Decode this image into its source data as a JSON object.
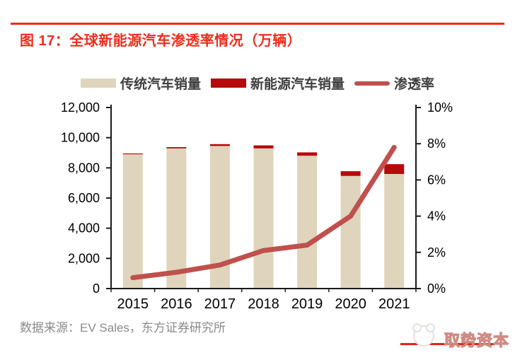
{
  "header": {
    "title": "图 17：全球新能源汽车渗透率情况（万辆）",
    "rule_color": "#ee2d1c",
    "title_color": "#ee2d1c"
  },
  "footer": {
    "source": "数据来源：EV Sales，东方证券研究所",
    "logo_text": "取势资本"
  },
  "colors": {
    "bar_traditional": "#ded5bc",
    "bar_nev": "#b60a0c",
    "line_penetration": "#c0504d",
    "axis": "#1a1a1a",
    "tick_text": "#000000"
  },
  "chart_data": {
    "type": "bar",
    "subtype": "stacked-bars-with-line-overlay",
    "title": "全球新能源汽车渗透率情况（万辆）",
    "categories": [
      "2015",
      "2016",
      "2017",
      "2018",
      "2019",
      "2020",
      "2021"
    ],
    "series": [
      {
        "name": "传统汽车销量",
        "type": "bar",
        "axis": "left",
        "color": "#ded5bc",
        "values": [
          8900,
          9290,
          9450,
          9290,
          8805,
          7465,
          7595
        ]
      },
      {
        "name": "新能源汽车销量",
        "type": "bar",
        "axis": "left",
        "color": "#b60a0c",
        "values": [
          55,
          84,
          122,
          200,
          221,
          312,
          650
        ]
      },
      {
        "name": "渗透率",
        "type": "line",
        "axis": "right",
        "color": "#c0504d",
        "values": [
          0.6,
          0.9,
          1.3,
          2.1,
          2.4,
          4.0,
          7.8
        ]
      }
    ],
    "left_axis": {
      "min": 0,
      "max": 12000,
      "tick_step": 2000,
      "tick_labels": [
        "0",
        "2,000",
        "4,000",
        "6,000",
        "8,000",
        "10,000",
        "12,000"
      ]
    },
    "right_axis": {
      "min": 0,
      "max": 10,
      "tick_step": 2,
      "tick_labels": [
        "0%",
        "2%",
        "4%",
        "6%",
        "8%",
        "10%"
      ]
    },
    "grid": false,
    "legend_position": "top",
    "stacked": true
  }
}
